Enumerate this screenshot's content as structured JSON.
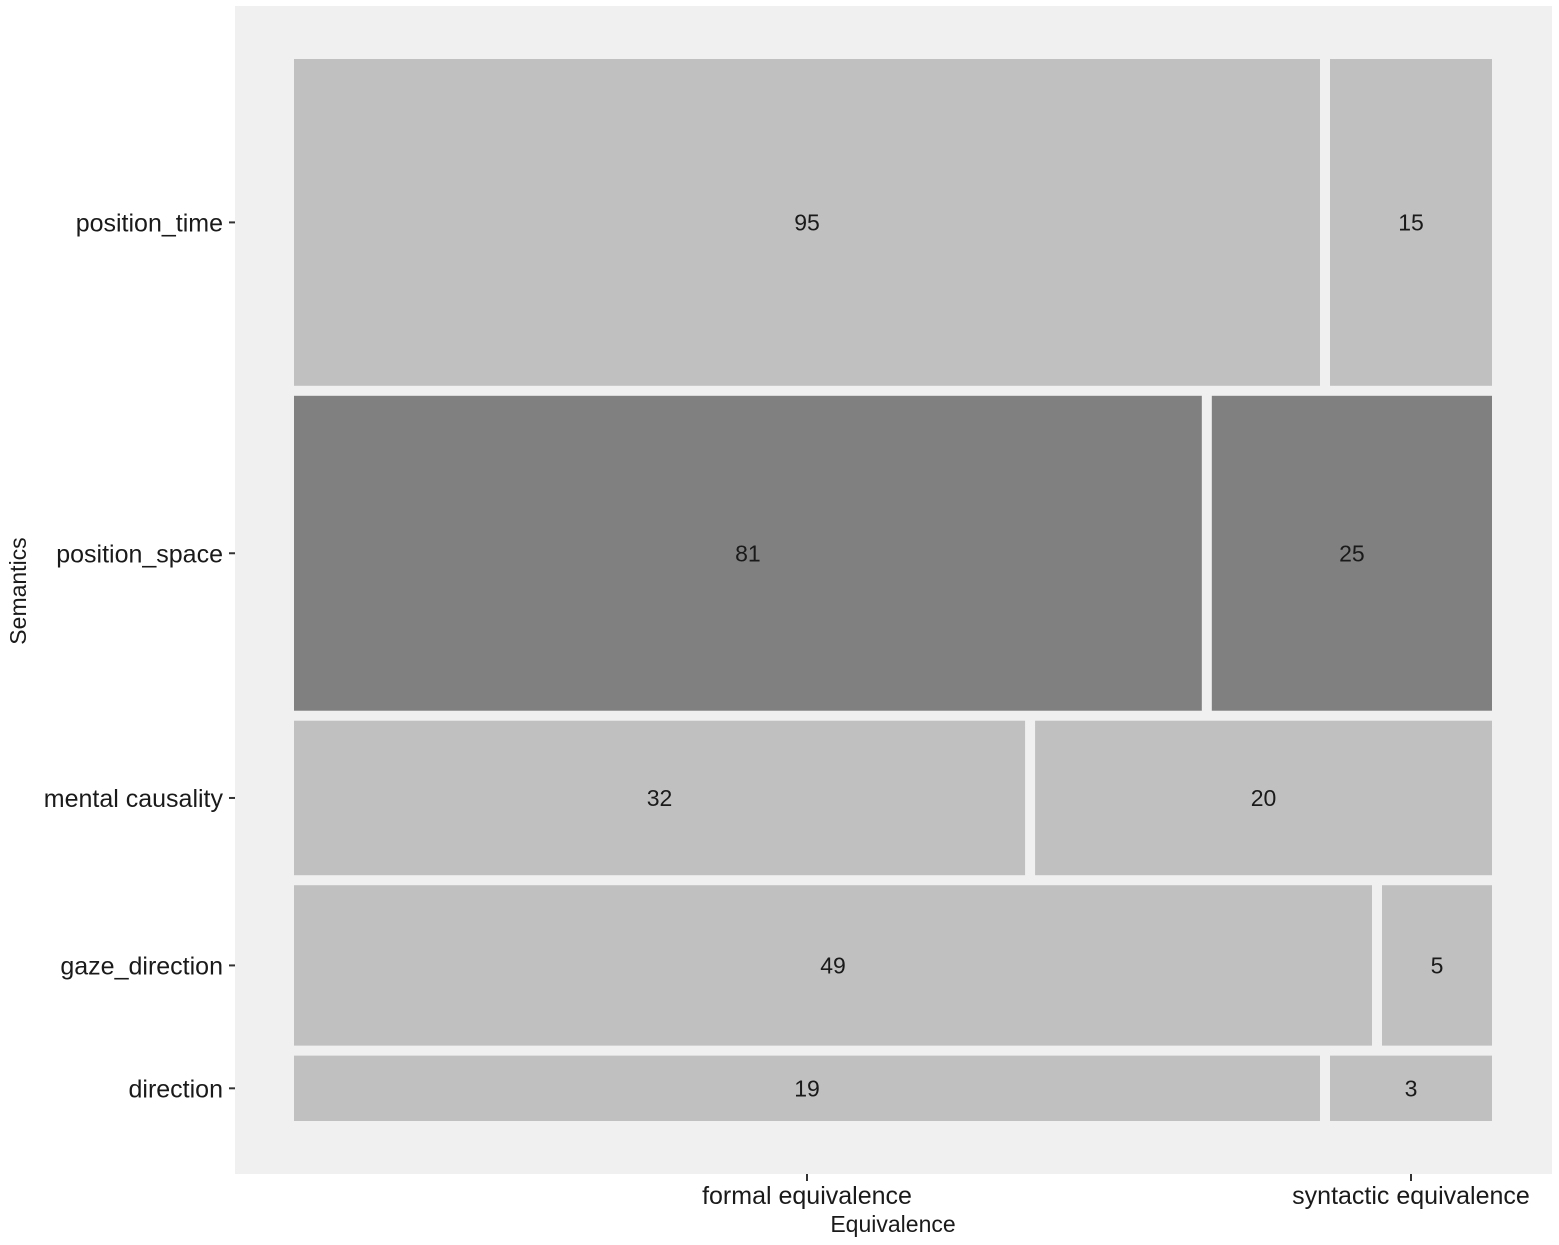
{
  "chart_data": {
    "type": "mosaic",
    "xlabel": "Equivalence",
    "ylabel": "Semantics",
    "columns": [
      "formal equivalence",
      "syntactic equivalence"
    ],
    "rows": [
      {
        "name": "position_time",
        "counts": [
          95,
          15
        ],
        "highlight": false
      },
      {
        "name": "position_space",
        "counts": [
          81,
          25
        ],
        "highlight": true
      },
      {
        "name": "mental causality",
        "counts": [
          32,
          20
        ],
        "highlight": false
      },
      {
        "name": "gaze_direction",
        "counts": [
          49,
          5
        ],
        "highlight": false
      },
      {
        "name": "direction",
        "counts": [
          19,
          3
        ],
        "highlight": false
      }
    ],
    "grid": false
  },
  "colors": {
    "panel_background": "#f0f0f0",
    "cell_default": "#c0c0c0",
    "cell_highlight": "#808080",
    "text": "#1a1a1a"
  }
}
